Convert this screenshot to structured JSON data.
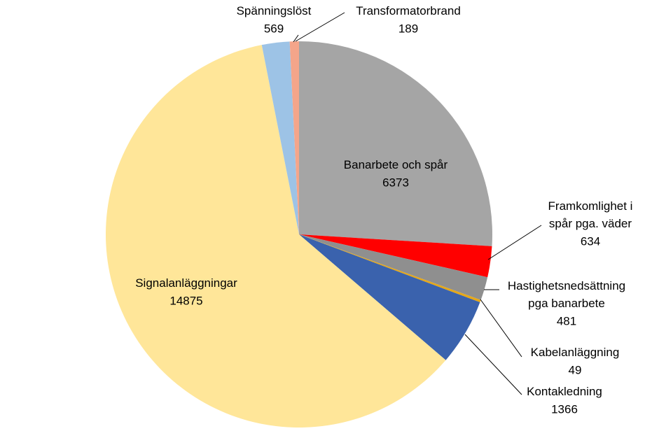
{
  "chart_data": {
    "type": "pie",
    "categories": [
      "Banarbete och spår",
      "Framkomlighet i spår pga. väder",
      "Hastighetsnedsättning pga banarbete",
      "Kabelanläggning",
      "Kontakledning",
      "Signalanläggningar",
      "Spänningslöst",
      "Transformatorbrand"
    ],
    "values": [
      6373,
      634,
      481,
      49,
      1366,
      14875,
      569,
      189
    ],
    "colors": [
      "#a5a5a5",
      "#ff0000",
      "#8f8f8f",
      "#e6a817",
      "#3a62ad",
      "#ffe699",
      "#9dc3e6",
      "#f4a58a"
    ]
  }
}
